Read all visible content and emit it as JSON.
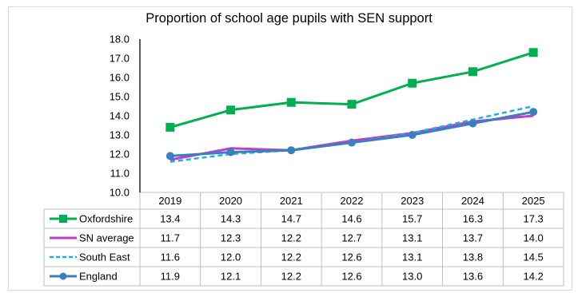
{
  "chart_data": {
    "type": "line",
    "title": "Proportion of school age pupils with SEN support",
    "xlabel": "",
    "ylabel": "",
    "x": [
      "2019",
      "2020",
      "2021",
      "2022",
      "2023",
      "2024",
      "2025"
    ],
    "ylim": [
      10.0,
      18.0
    ],
    "yticks": [
      "10.0",
      "11.0",
      "12.0",
      "13.0",
      "14.0",
      "15.0",
      "16.0",
      "17.0",
      "18.0"
    ],
    "grid": false,
    "legend": "data-table-left",
    "series": [
      {
        "name": "Oxfordshire",
        "values": [
          13.4,
          14.3,
          14.7,
          14.6,
          15.7,
          16.3,
          17.3
        ],
        "labels": [
          "13.4",
          "14.3",
          "14.7",
          "14.6",
          "15.7",
          "16.3",
          "17.3"
        ],
        "color": "#00b050",
        "style": "solid",
        "marker": "square"
      },
      {
        "name": "SN average",
        "values": [
          11.7,
          12.3,
          12.2,
          12.7,
          13.1,
          13.7,
          14.0
        ],
        "labels": [
          "11.7",
          "12.3",
          "12.2",
          "12.7",
          "13.1",
          "13.7",
          "14.0"
        ],
        "color": "#c03ec3",
        "style": "solid",
        "marker": "none"
      },
      {
        "name": "South East",
        "values": [
          11.6,
          12.0,
          12.2,
          12.6,
          13.1,
          13.8,
          14.5
        ],
        "labels": [
          "11.6",
          "12.0",
          "12.2",
          "12.6",
          "13.1",
          "13.8",
          "14.5"
        ],
        "color": "#1ab0e8",
        "style": "dashed",
        "marker": "none"
      },
      {
        "name": "England",
        "values": [
          11.9,
          12.1,
          12.2,
          12.6,
          13.0,
          13.6,
          14.2
        ],
        "labels": [
          "11.9",
          "12.1",
          "12.2",
          "12.6",
          "13.0",
          "13.6",
          "14.2"
        ],
        "color": "#3a7fc0",
        "style": "solid",
        "marker": "circle"
      }
    ]
  }
}
